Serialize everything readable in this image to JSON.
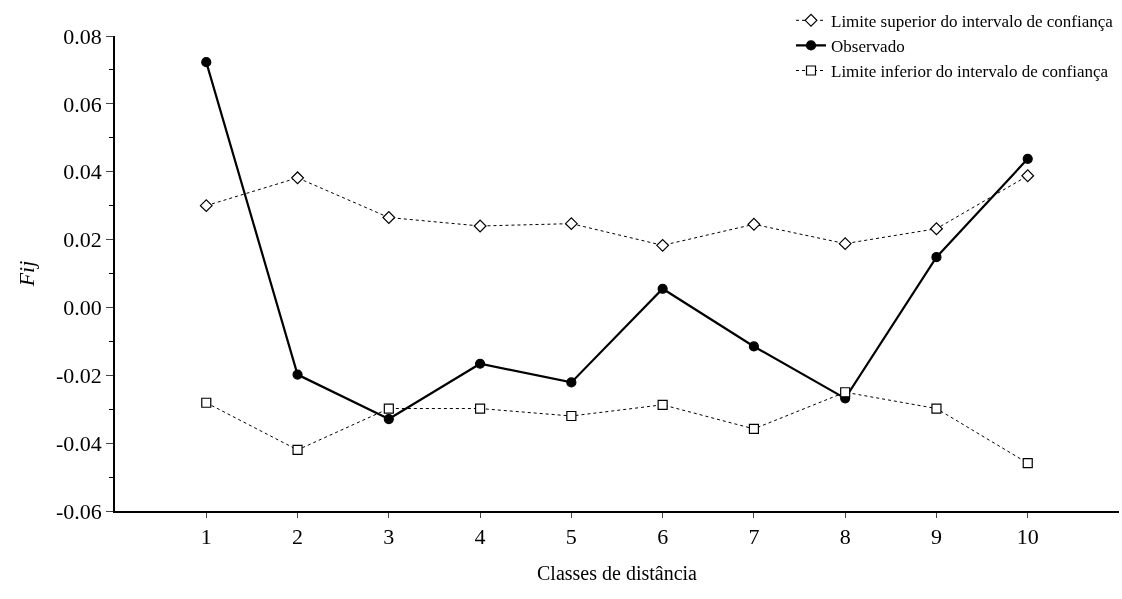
{
  "chart_data": {
    "type": "line",
    "xlabel": "Classes de distância",
    "ylabel": "Fij",
    "x": [
      1,
      2,
      3,
      4,
      5,
      6,
      7,
      8,
      9,
      10
    ],
    "xlim": [
      0,
      11
    ],
    "xticks": [
      1,
      2,
      3,
      4,
      5,
      6,
      7,
      8,
      9,
      10
    ],
    "ylim": [
      -0.06,
      0.08
    ],
    "yticks": [
      {
        "value": -0.06,
        "label": "-0.06"
      },
      {
        "value": -0.05,
        "label": null
      },
      {
        "value": -0.04,
        "label": "-0.04"
      },
      {
        "value": -0.03,
        "label": null
      },
      {
        "value": -0.02,
        "label": "-0.02"
      },
      {
        "value": -0.01,
        "label": null
      },
      {
        "value": 0,
        "label": "0.00"
      },
      {
        "value": 0.01,
        "label": null
      },
      {
        "value": 0.02,
        "label": "0.02"
      },
      {
        "value": 0.03,
        "label": null
      },
      {
        "value": 0.04,
        "label": "0.04"
      },
      {
        "value": 0.05,
        "label": null
      },
      {
        "value": 0.06,
        "label": "0.06"
      },
      {
        "value": 0.07,
        "label": null
      },
      {
        "value": 0.08,
        "label": "0.08"
      }
    ],
    "legend": "top right",
    "series": [
      {
        "name": "Limite superior do intervalo de confiança",
        "color": "#000000",
        "marker": "diamond",
        "line_style": "dotted",
        "values": [
          0.03,
          0.0382,
          0.0265,
          0.024,
          0.0247,
          0.0183,
          0.0245,
          0.0188,
          0.0232,
          0.0388
        ]
      },
      {
        "name": "Observado",
        "color": "#000000",
        "marker": "circle",
        "line_style": "solid",
        "values": [
          0.0723,
          -0.0198,
          -0.0329,
          -0.0166,
          -0.0221,
          0.0055,
          -0.0115,
          -0.0268,
          0.0148,
          0.0438
        ]
      },
      {
        "name": "Limite inferior do intervalo de confiança",
        "color": "#000000",
        "marker": "square",
        "line_style": "dotted",
        "values": [
          -0.0281,
          -0.042,
          -0.0298,
          -0.0298,
          -0.032,
          -0.0287,
          -0.0358,
          -0.025,
          -0.0298,
          -0.0459
        ]
      }
    ]
  }
}
